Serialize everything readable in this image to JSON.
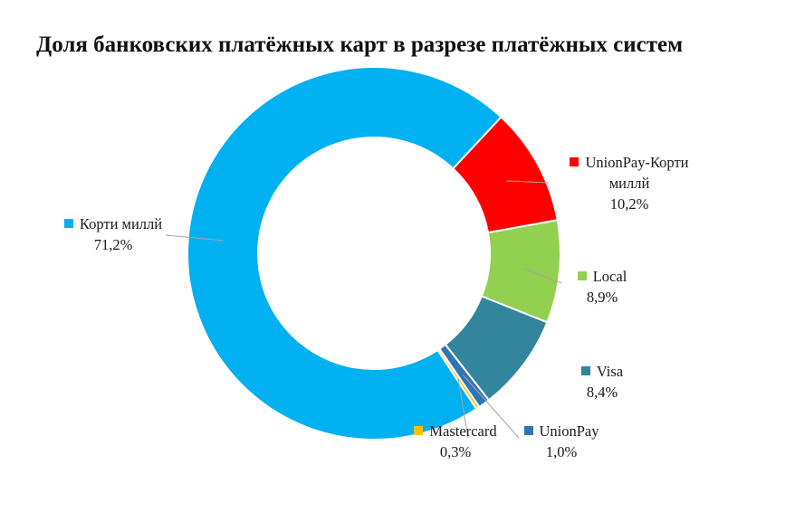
{
  "chart_data": {
    "type": "pie",
    "title": "Доля банковских платёжных карт в разрезе платёжных систем",
    "slices": [
      {
        "name": "UnionPay-Корти миллй",
        "value": 10.2,
        "name_line1": "UnionPay-Корти",
        "name_line2": "миллй",
        "value_label": "10,2%",
        "color": "#FF0000"
      },
      {
        "name": "Local",
        "value": 8.9,
        "value_label": "8,9%",
        "color": "#92D050"
      },
      {
        "name": "Visa",
        "value": 8.4,
        "value_label": "8,4%",
        "color": "#31859C"
      },
      {
        "name": "UnionPay",
        "value": 1.0,
        "value_label": "1,0%",
        "color": "#2E75B6"
      },
      {
        "name": "Mastercard",
        "value": 0.3,
        "value_label": "0,3%",
        "color": "#FFC000"
      },
      {
        "name": "Корти миллй",
        "value": 71.2,
        "value_label": "71,2%",
        "color": "#00B0F0"
      }
    ],
    "legend": "none"
  }
}
